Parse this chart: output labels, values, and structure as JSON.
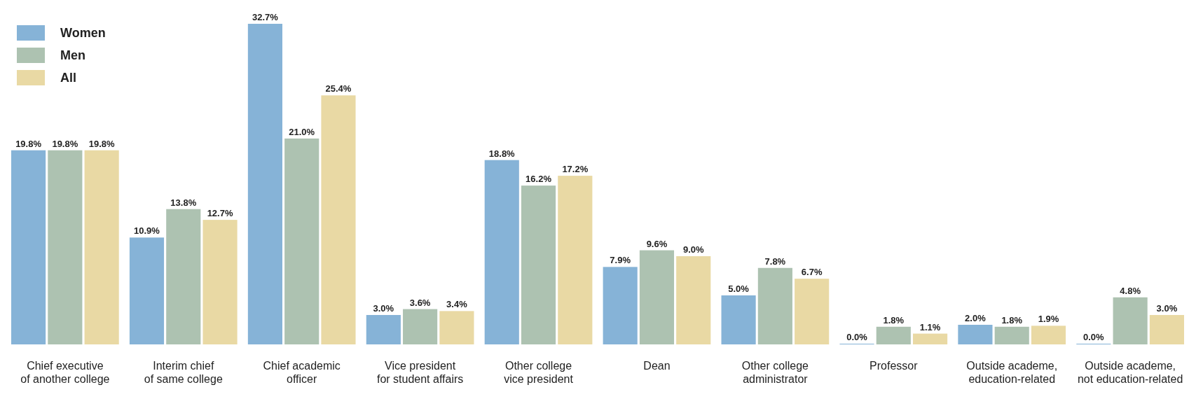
{
  "chart_data": {
    "type": "bar",
    "categories": [
      "Chief executive\nof another college",
      "Interim chief\nof same college",
      "Chief academic\nofficer",
      "Vice president\nfor student affairs",
      "Other college\nvice president",
      "Dean",
      "Other college\nadministrator",
      "Professor",
      "Outside academe,\neducation-related",
      "Outside academe,\nnot education-related"
    ],
    "series": [
      {
        "name": "Women",
        "color": "#86b3d7",
        "values": [
          19.8,
          10.9,
          32.7,
          3.0,
          18.8,
          7.9,
          5.0,
          0.0,
          2.0,
          0.0
        ],
        "value_labels": [
          "19.8%",
          "10.9%",
          "32.7%",
          "3.0%",
          "18.8%",
          "7.9%",
          "5.0%",
          "0.0%",
          "2.0%",
          "0.0%"
        ]
      },
      {
        "name": "Men",
        "color": "#adc2b1",
        "values": [
          19.8,
          13.8,
          21.0,
          3.6,
          16.2,
          9.6,
          7.8,
          1.8,
          1.8,
          4.8
        ],
        "value_labels": [
          "19.8%",
          "13.8%",
          "21.0%",
          "3.6%",
          "16.2%",
          "9.6%",
          "7.8%",
          "1.8%",
          "1.8%",
          "4.8%"
        ]
      },
      {
        "name": "All",
        "color": "#e9d9a4",
        "values": [
          19.8,
          12.7,
          25.4,
          3.4,
          17.2,
          9.0,
          6.7,
          1.1,
          1.9,
          3.0
        ],
        "value_labels": [
          "19.8%",
          "12.7%",
          "25.4%",
          "3.4%",
          "17.2%",
          "9.0%",
          "6.7%",
          "1.1%",
          "1.9%",
          "3.0%"
        ]
      }
    ],
    "legend": "top left"
  }
}
